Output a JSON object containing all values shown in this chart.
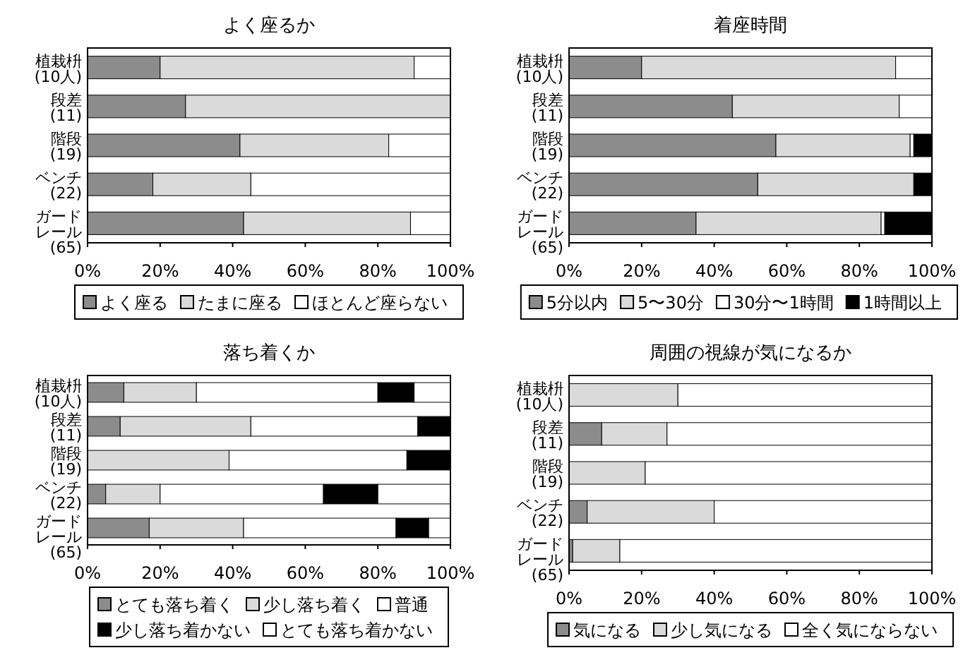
{
  "chart_data": [
    {
      "type": "bar",
      "orientation": "horizontal",
      "stacked": true,
      "title": "よく座るか",
      "categories": [
        "植栽枡(10人)",
        "段差(11)",
        "階段(19)",
        "ベンチ(22)",
        "ガードレール(65)"
      ],
      "series": [
        {
          "name": "よく座る",
          "color": "#8c8c8c",
          "values": [
            20,
            27,
            42,
            18,
            43
          ]
        },
        {
          "name": "たまに座る",
          "color": "#dadada",
          "values": [
            70,
            73,
            41,
            27,
            46
          ]
        },
        {
          "name": "ほとんど座らない",
          "color": "#ffffff",
          "values": [
            10,
            0,
            17,
            55,
            11
          ]
        }
      ],
      "xlim": [
        0,
        100
      ],
      "xticks": [
        {
          "value": 0,
          "label": "0%"
        },
        {
          "value": 20,
          "label": "20%"
        },
        {
          "value": 40,
          "label": "40%"
        },
        {
          "value": 60,
          "label": "60%"
        },
        {
          "value": 80,
          "label": "80%"
        },
        {
          "value": 100,
          "label": "100%"
        }
      ],
      "legend": "bottom",
      "grid": false
    },
    {
      "type": "bar",
      "orientation": "horizontal",
      "stacked": true,
      "title": "着座時間",
      "categories": [
        "植栽枡(10人)",
        "段差(11)",
        "階段(19)",
        "ベンチ(22)",
        "ガードレール(65)"
      ],
      "series": [
        {
          "name": "5分以内",
          "color": "#8c8c8c",
          "values": [
            20,
            45,
            57,
            52,
            35
          ]
        },
        {
          "name": "5〜30分",
          "color": "#dadada",
          "values": [
            70,
            46,
            37,
            43,
            51
          ]
        },
        {
          "name": "30分〜1時間",
          "color": "#ffffff",
          "values": [
            10,
            9,
            1,
            0,
            1
          ]
        },
        {
          "name": "1時間以上",
          "color": "#000000",
          "values": [
            0,
            0,
            5,
            5,
            13
          ]
        }
      ],
      "xlim": [
        0,
        100
      ],
      "xticks": [
        {
          "value": 0,
          "label": "0%"
        },
        {
          "value": 20,
          "label": "20%"
        },
        {
          "value": 40,
          "label": "40%"
        },
        {
          "value": 60,
          "label": "60%"
        },
        {
          "value": 80,
          "label": "80%"
        },
        {
          "value": 100,
          "label": "100%"
        }
      ],
      "legend": "bottom",
      "grid": false
    },
    {
      "type": "bar",
      "orientation": "horizontal",
      "stacked": true,
      "title": "落ち着くか",
      "categories": [
        "植栽枡(10人)",
        "段差(11)",
        "階段(19)",
        "ベンチ(22)",
        "ガードレール(65)"
      ],
      "series": [
        {
          "name": "とても落ち着く",
          "color": "#8c8c8c",
          "values": [
            10,
            9,
            0,
            5,
            17
          ]
        },
        {
          "name": "少し落ち着く",
          "color": "#dadada",
          "values": [
            20,
            36,
            39,
            15,
            26
          ]
        },
        {
          "name": "普通",
          "color": "#ffffff",
          "values": [
            50,
            46,
            49,
            45,
            42
          ]
        },
        {
          "name": "少し落ち着かない",
          "color": "#000000",
          "values": [
            10,
            9,
            12,
            15,
            9
          ]
        },
        {
          "name": "とても落ち着かない",
          "color": "#ffffff",
          "values": [
            10,
            0,
            0,
            20,
            6
          ]
        }
      ],
      "xlim": [
        0,
        100
      ],
      "xticks": [
        {
          "value": 0,
          "label": "0%"
        },
        {
          "value": 20,
          "label": "20%"
        },
        {
          "value": 40,
          "label": "40%"
        },
        {
          "value": 60,
          "label": "60%"
        },
        {
          "value": 80,
          "label": "80%"
        },
        {
          "value": 100,
          "label": "100%"
        }
      ],
      "legend": "bottom",
      "grid": false
    },
    {
      "type": "bar",
      "orientation": "horizontal",
      "stacked": true,
      "title": "周囲の視線が気になるか",
      "categories": [
        "植栽枡(10人)",
        "段差(11)",
        "階段(19)",
        "ベンチ(22)",
        "ガードレール(65)"
      ],
      "series": [
        {
          "name": "気になる",
          "color": "#8c8c8c",
          "values": [
            0,
            9,
            0,
            5,
            1
          ]
        },
        {
          "name": "少し気になる",
          "color": "#dadada",
          "values": [
            30,
            18,
            21,
            35,
            13
          ]
        },
        {
          "name": "全く気にならない",
          "color": "#ffffff",
          "values": [
            70,
            73,
            79,
            60,
            86
          ]
        }
      ],
      "xlim": [
        0,
        100
      ],
      "xticks": [
        {
          "value": 0,
          "label": "0%"
        },
        {
          "value": 20,
          "label": "20%"
        },
        {
          "value": 40,
          "label": "40%"
        },
        {
          "value": 60,
          "label": "60%"
        },
        {
          "value": 80,
          "label": "80%"
        },
        {
          "value": 100,
          "label": "100%"
        }
      ],
      "legend": "bottom",
      "grid": false
    }
  ]
}
